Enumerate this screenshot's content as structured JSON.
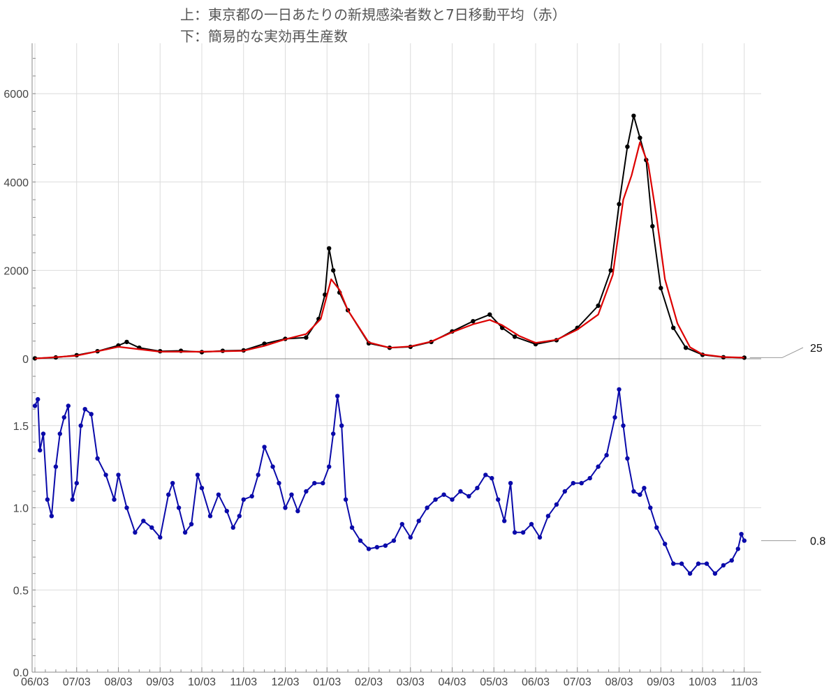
{
  "title": {
    "line1": "上：東京都の一日あたりの新規感染者数と7日移動平均（赤）",
    "line2": "下：簡易的な実効再生産数"
  },
  "colors": {
    "cases": "#000000",
    "moving_average": "#dd0000",
    "reproduction": "#0a0aaa",
    "grid": "#dcdcdc",
    "axis": "#8a8a8a"
  },
  "chart_data": [
    {
      "type": "line",
      "name": "daily-cases",
      "x_unit": "month",
      "x_tick_labels": [
        "06/03",
        "07/03",
        "08/03",
        "09/03",
        "10/03",
        "11/03",
        "12/03",
        "01/03",
        "02/03",
        "03/03",
        "04/03",
        "05/03",
        "06/03",
        "07/03",
        "08/03",
        "09/03",
        "10/03",
        "11/03"
      ],
      "ylim": [
        0,
        7000
      ],
      "y_ticks": [
        0,
        2000,
        4000,
        6000
      ],
      "grid": true,
      "series": [
        {
          "name": "cases",
          "color": "#000000",
          "markers": true,
          "points": [
            [
              0,
              10
            ],
            [
              0.5,
              30
            ],
            [
              1,
              80
            ],
            [
              1.5,
              170
            ],
            [
              2,
              300
            ],
            [
              2.2,
              380
            ],
            [
              2.5,
              250
            ],
            [
              3,
              170
            ],
            [
              3.5,
              180
            ],
            [
              4,
              150
            ],
            [
              4.5,
              180
            ],
            [
              5,
              190
            ],
            [
              5.5,
              340
            ],
            [
              6,
              450
            ],
            [
              6.5,
              480
            ],
            [
              6.8,
              900
            ],
            [
              6.95,
              1450
            ],
            [
              7.05,
              2500
            ],
            [
              7.15,
              2000
            ],
            [
              7.3,
              1500
            ],
            [
              7.5,
              1100
            ],
            [
              8,
              350
            ],
            [
              8.5,
              250
            ],
            [
              9,
              270
            ],
            [
              9.5,
              380
            ],
            [
              10,
              620
            ],
            [
              10.5,
              850
            ],
            [
              10.9,
              1000
            ],
            [
              11.2,
              700
            ],
            [
              11.5,
              500
            ],
            [
              12,
              330
            ],
            [
              12.5,
              420
            ],
            [
              13,
              700
            ],
            [
              13.5,
              1200
            ],
            [
              13.8,
              2000
            ],
            [
              14,
              3500
            ],
            [
              14.2,
              4800
            ],
            [
              14.35,
              5500
            ],
            [
              14.5,
              5000
            ],
            [
              14.65,
              4500
            ],
            [
              14.8,
              3000
            ],
            [
              15,
              1600
            ],
            [
              15.3,
              700
            ],
            [
              15.6,
              250
            ],
            [
              16,
              90
            ],
            [
              16.5,
              35
            ],
            [
              17,
              25
            ]
          ]
        },
        {
          "name": "moving-average",
          "color": "#dd0000",
          "markers": false,
          "points": [
            [
              0,
              5
            ],
            [
              1,
              70
            ],
            [
              2,
              270
            ],
            [
              3,
              160
            ],
            [
              4,
              160
            ],
            [
              5,
              180
            ],
            [
              5.5,
              290
            ],
            [
              6,
              440
            ],
            [
              6.5,
              560
            ],
            [
              6.85,
              900
            ],
            [
              7.1,
              1800
            ],
            [
              7.3,
              1560
            ],
            [
              7.5,
              1100
            ],
            [
              8,
              370
            ],
            [
              8.5,
              250
            ],
            [
              9,
              280
            ],
            [
              9.5,
              390
            ],
            [
              10,
              600
            ],
            [
              10.5,
              780
            ],
            [
              10.9,
              880
            ],
            [
              11.2,
              760
            ],
            [
              11.6,
              520
            ],
            [
              12,
              360
            ],
            [
              12.5,
              430
            ],
            [
              13,
              660
            ],
            [
              13.5,
              1000
            ],
            [
              13.85,
              1900
            ],
            [
              14.1,
              3600
            ],
            [
              14.3,
              4150
            ],
            [
              14.5,
              4900
            ],
            [
              14.7,
              4400
            ],
            [
              14.9,
              3200
            ],
            [
              15.1,
              1800
            ],
            [
              15.4,
              800
            ],
            [
              15.7,
              260
            ],
            [
              16,
              100
            ],
            [
              16.5,
              40
            ],
            [
              17,
              25
            ]
          ]
        }
      ],
      "end_value_label": "25"
    },
    {
      "type": "line",
      "name": "reproduction-number",
      "x_unit": "month",
      "x_tick_labels": [
        "06/03",
        "07/03",
        "08/03",
        "09/03",
        "10/03",
        "11/03",
        "12/03",
        "01/03",
        "02/03",
        "03/03",
        "04/03",
        "05/03",
        "06/03",
        "07/03",
        "08/03",
        "09/03",
        "10/03",
        "11/03"
      ],
      "ylim": [
        0,
        1.8
      ],
      "y_ticks": [
        0.0,
        0.5,
        1.0,
        1.5
      ],
      "y_tick_labels": [
        "0.0",
        "0.5",
        "1.0",
        "1.5"
      ],
      "grid": true,
      "series": [
        {
          "name": "reproduction",
          "color": "#0a0aaa",
          "markers": true,
          "points": [
            [
              0,
              1.62
            ],
            [
              0.07,
              1.66
            ],
            [
              0.12,
              1.35
            ],
            [
              0.2,
              1.45
            ],
            [
              0.3,
              1.05
            ],
            [
              0.4,
              0.95
            ],
            [
              0.5,
              1.25
            ],
            [
              0.6,
              1.45
            ],
            [
              0.7,
              1.55
            ],
            [
              0.8,
              1.62
            ],
            [
              0.9,
              1.05
            ],
            [
              1,
              1.15
            ],
            [
              1.1,
              1.5
            ],
            [
              1.2,
              1.6
            ],
            [
              1.35,
              1.57
            ],
            [
              1.5,
              1.3
            ],
            [
              1.7,
              1.2
            ],
            [
              1.9,
              1.05
            ],
            [
              2,
              1.2
            ],
            [
              2.2,
              1.0
            ],
            [
              2.4,
              0.85
            ],
            [
              2.6,
              0.92
            ],
            [
              2.8,
              0.88
            ],
            [
              3,
              0.82
            ],
            [
              3.2,
              1.08
            ],
            [
              3.3,
              1.15
            ],
            [
              3.45,
              1.0
            ],
            [
              3.6,
              0.85
            ],
            [
              3.75,
              0.9
            ],
            [
              3.9,
              1.2
            ],
            [
              4,
              1.12
            ],
            [
              4.2,
              0.95
            ],
            [
              4.4,
              1.08
            ],
            [
              4.6,
              0.98
            ],
            [
              4.75,
              0.88
            ],
            [
              4.9,
              0.95
            ],
            [
              5,
              1.05
            ],
            [
              5.2,
              1.07
            ],
            [
              5.35,
              1.2
            ],
            [
              5.5,
              1.37
            ],
            [
              5.7,
              1.25
            ],
            [
              5.85,
              1.15
            ],
            [
              6,
              1.0
            ],
            [
              6.15,
              1.08
            ],
            [
              6.3,
              0.98
            ],
            [
              6.5,
              1.1
            ],
            [
              6.7,
              1.15
            ],
            [
              6.9,
              1.15
            ],
            [
              7.05,
              1.25
            ],
            [
              7.15,
              1.45
            ],
            [
              7.25,
              1.68
            ],
            [
              7.35,
              1.5
            ],
            [
              7.45,
              1.05
            ],
            [
              7.6,
              0.88
            ],
            [
              7.8,
              0.8
            ],
            [
              8,
              0.75
            ],
            [
              8.2,
              0.76
            ],
            [
              8.4,
              0.77
            ],
            [
              8.6,
              0.8
            ],
            [
              8.8,
              0.9
            ],
            [
              9,
              0.82
            ],
            [
              9.2,
              0.92
            ],
            [
              9.4,
              1.0
            ],
            [
              9.6,
              1.05
            ],
            [
              9.8,
              1.08
            ],
            [
              10,
              1.05
            ],
            [
              10.2,
              1.1
            ],
            [
              10.4,
              1.07
            ],
            [
              10.6,
              1.12
            ],
            [
              10.8,
              1.2
            ],
            [
              10.95,
              1.18
            ],
            [
              11.1,
              1.05
            ],
            [
              11.25,
              0.92
            ],
            [
              11.4,
              1.15
            ],
            [
              11.5,
              0.85
            ],
            [
              11.7,
              0.85
            ],
            [
              11.9,
              0.9
            ],
            [
              12.1,
              0.82
            ],
            [
              12.3,
              0.95
            ],
            [
              12.5,
              1.02
            ],
            [
              12.7,
              1.1
            ],
            [
              12.9,
              1.15
            ],
            [
              13.1,
              1.15
            ],
            [
              13.3,
              1.18
            ],
            [
              13.5,
              1.25
            ],
            [
              13.7,
              1.32
            ],
            [
              13.9,
              1.55
            ],
            [
              14,
              1.72
            ],
            [
              14.1,
              1.5
            ],
            [
              14.2,
              1.3
            ],
            [
              14.35,
              1.1
            ],
            [
              14.5,
              1.08
            ],
            [
              14.6,
              1.12
            ],
            [
              14.75,
              1.0
            ],
            [
              14.9,
              0.88
            ],
            [
              15.1,
              0.78
            ],
            [
              15.3,
              0.66
            ],
            [
              15.5,
              0.66
            ],
            [
              15.7,
              0.6
            ],
            [
              15.9,
              0.66
            ],
            [
              16.1,
              0.66
            ],
            [
              16.3,
              0.6
            ],
            [
              16.5,
              0.65
            ],
            [
              16.7,
              0.68
            ],
            [
              16.85,
              0.75
            ],
            [
              16.93,
              0.84
            ],
            [
              17,
              0.8
            ]
          ]
        }
      ],
      "end_value_label": "0.8"
    }
  ]
}
